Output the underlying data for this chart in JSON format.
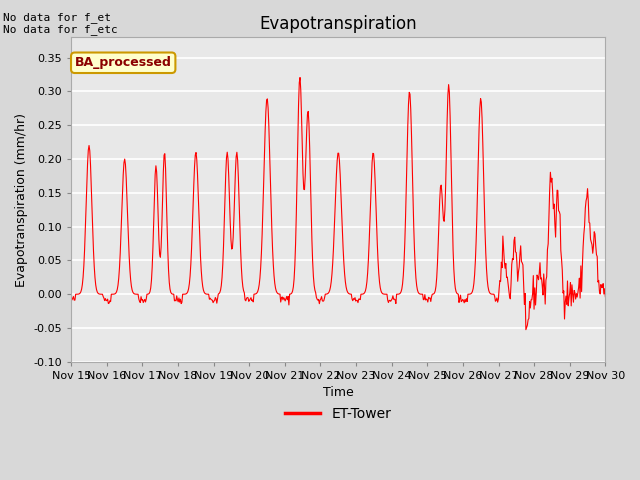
{
  "title": "Evapotranspiration",
  "ylabel": "Evapotranspiration (mm/hr)",
  "xlabel": "Time",
  "ylim": [
    -0.1,
    0.38
  ],
  "yticks": [
    -0.1,
    -0.05,
    0.0,
    0.05,
    0.1,
    0.15,
    0.2,
    0.25,
    0.3,
    0.35
  ],
  "line_color": "red",
  "line_width": 0.8,
  "fig_facecolor": "#d8d8d8",
  "axes_bg_color": "#e8e8e8",
  "grid_color": "white",
  "legend_label": "ET-Tower",
  "legend_line_color": "red",
  "annotation_text": "No data for f_et\nNo data for f_etc",
  "ba_box_text": "BA_processed",
  "ba_box_color": "#ffffcc",
  "ba_box_edge_color": "#cc9900",
  "xtick_labels": [
    "Nov 15",
    "Nov 16",
    "Nov 17",
    "Nov 18",
    "Nov 19",
    "Nov 20",
    "Nov 21",
    "Nov 22",
    "Nov 23",
    "Nov 24",
    "Nov 25",
    "Nov 26",
    "Nov 27",
    "Nov 28",
    "Nov 29",
    "Nov 30"
  ],
  "title_fontsize": 12,
  "label_fontsize": 9,
  "tick_fontsize": 8,
  "annot_fontsize": 8,
  "ba_fontsize": 9
}
